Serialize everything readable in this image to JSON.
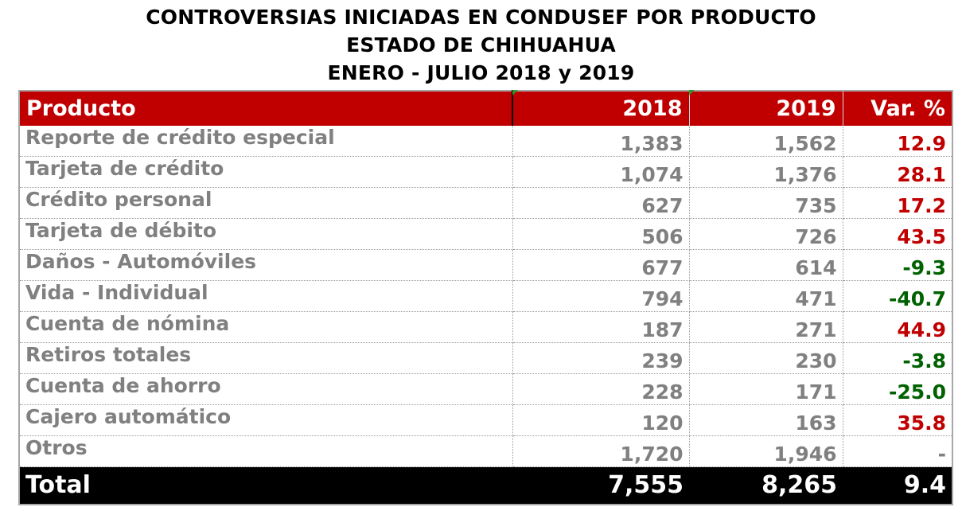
{
  "title": {
    "line1": "CONTROVERSIAS INICIADAS EN CONDUSEF POR PRODUCTO",
    "line2": "ESTADO DE CHIHUAHUA",
    "line3": "ENERO - JULIO 2018 y 2019"
  },
  "table": {
    "headers": [
      "Producto",
      "2018",
      "2019",
      "Var. %"
    ],
    "rows": [
      {
        "producto": "Reporte de crédito especial",
        "y2018": "1,383",
        "y2019": "1,562",
        "var": "12.9",
        "trend": "pos"
      },
      {
        "producto": "Tarjeta de crédito",
        "y2018": "1,074",
        "y2019": "1,376",
        "var": "28.1",
        "trend": "pos"
      },
      {
        "producto": "Crédito personal",
        "y2018": "627",
        "y2019": "735",
        "var": "17.2",
        "trend": "pos"
      },
      {
        "producto": "Tarjeta de débito",
        "y2018": "506",
        "y2019": "726",
        "var": "43.5",
        "trend": "pos"
      },
      {
        "producto": "Daños - Automóviles",
        "y2018": "677",
        "y2019": "614",
        "var": "-9.3",
        "trend": "neg"
      },
      {
        "producto": "Vida - Individual",
        "y2018": "794",
        "y2019": "471",
        "var": "-40.7",
        "trend": "neg"
      },
      {
        "producto": "Cuenta de nómina",
        "y2018": "187",
        "y2019": "271",
        "var": "44.9",
        "trend": "pos"
      },
      {
        "producto": "Retiros totales",
        "y2018": "239",
        "y2019": "230",
        "var": "-3.8",
        "trend": "neg"
      },
      {
        "producto": "Cuenta de ahorro",
        "y2018": "228",
        "y2019": "171",
        "var": "-25.0",
        "trend": "neg"
      },
      {
        "producto": "Cajero automático",
        "y2018": "120",
        "y2019": "163",
        "var": "35.8",
        "trend": "pos"
      },
      {
        "producto": "Otros",
        "y2018": "1,720",
        "y2019": "1,946",
        "var": "-",
        "trend": "neu"
      }
    ],
    "total": {
      "producto": "Total",
      "y2018": "7,555",
      "y2019": "8,265",
      "var": "9.4"
    }
  },
  "colors": {
    "header_bg": "#c00000",
    "positive": "#c00000",
    "negative": "#006100",
    "total_bg": "#000000",
    "body_text": "#808080"
  }
}
